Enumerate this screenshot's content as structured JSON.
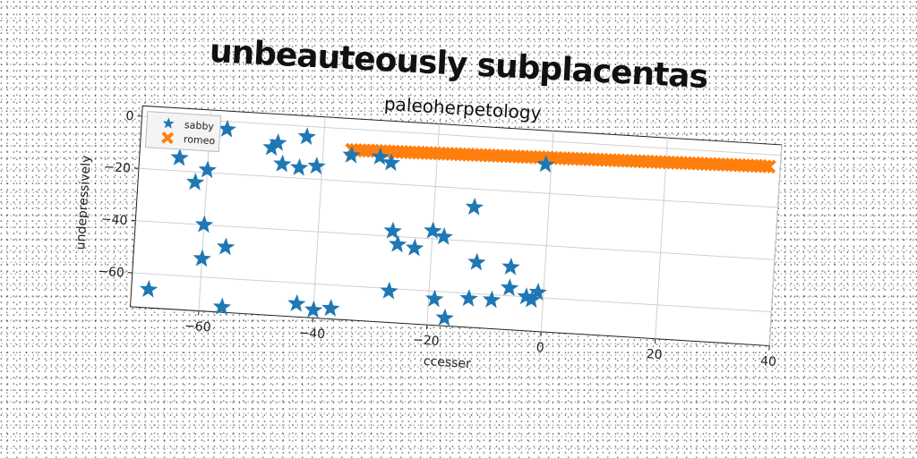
{
  "chart_data": {
    "type": "scatter",
    "title": "unbeauteously subplacentas",
    "subtitle": "paleoherpetology",
    "xlabel": "ccesser",
    "ylabel": "undepressively",
    "xlim": [
      -72,
      40
    ],
    "ylim": [
      -73,
      4
    ],
    "xticks": [
      -60,
      -40,
      -20,
      0,
      20,
      40
    ],
    "yticks": [
      0,
      -20,
      -40,
      -60
    ],
    "grid": true,
    "legend_position": "top-left",
    "series": [
      {
        "name": "sabby",
        "marker": "star",
        "color": "#1f77b4",
        "points": [
          [
            -69,
            -66
          ],
          [
            -65,
            -15
          ],
          [
            -62,
            -24
          ],
          [
            -60,
            -19
          ],
          [
            -60,
            -40
          ],
          [
            -60,
            -53
          ],
          [
            -57,
            -3
          ],
          [
            -56,
            -48
          ],
          [
            -56,
            -71
          ],
          [
            -49,
            -9
          ],
          [
            -48,
            -7
          ],
          [
            -47,
            -15
          ],
          [
            -44,
            -16
          ],
          [
            -43,
            -68
          ],
          [
            -43,
            -4
          ],
          [
            -41,
            -15
          ],
          [
            -40,
            -70
          ],
          [
            -37,
            -69
          ],
          [
            -35,
            -10
          ],
          [
            -30,
            -10
          ],
          [
            -28,
            -12
          ],
          [
            -27,
            -61
          ],
          [
            -27,
            -38
          ],
          [
            -26,
            -43
          ],
          [
            -23,
            -44
          ],
          [
            -20,
            -37
          ],
          [
            -19,
            -63
          ],
          [
            -18,
            -39
          ],
          [
            -17,
            -70
          ],
          [
            -13,
            -27
          ],
          [
            -13,
            -62
          ],
          [
            -12,
            -48
          ],
          [
            -9,
            -62
          ],
          [
            -6,
            -49
          ],
          [
            -6,
            -57
          ],
          [
            -3,
            -60
          ],
          [
            -2,
            -61
          ],
          [
            -1,
            -58
          ],
          [
            -1,
            -9
          ]
        ]
      },
      {
        "name": "romeo",
        "marker": "x",
        "color": "#ff7f0e",
        "x_start": -35,
        "x_end": 38,
        "x_step": 0.73,
        "y_start": -8,
        "y_end": -4.5
      }
    ]
  }
}
